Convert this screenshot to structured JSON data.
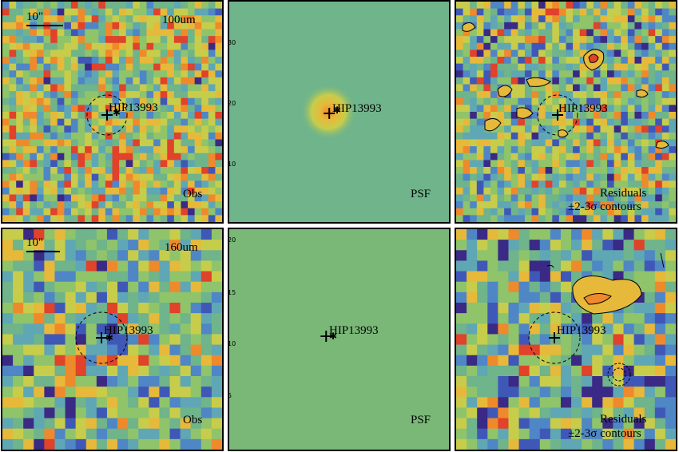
{
  "panels": [
    {
      "id": "obs100",
      "band_label": "100um",
      "corner_label": "Obs",
      "star": "HIP13993",
      "scale": "10\""
    },
    {
      "id": "psf100",
      "corner_label": "PSF",
      "star": "HIP13993",
      "axis_ticks": [
        "30",
        "20",
        "10"
      ]
    },
    {
      "id": "res100",
      "corner_label_1": "Residuals",
      "corner_label_2": "±2-3σ contours",
      "star": "HIP13993"
    },
    {
      "id": "obs160",
      "band_label": "160um",
      "corner_label": "Obs",
      "star": "HIP13993",
      "scale": "10\""
    },
    {
      "id": "psf160",
      "corner_label": "PSF",
      "star": "HIP13993",
      "axis_ticks": [
        "20",
        "15",
        "10",
        "5"
      ]
    },
    {
      "id": "res160",
      "corner_label_1": "Residuals",
      "corner_label_2": "±2-3σ contours",
      "star": "HIP13993"
    }
  ],
  "colors": {
    "palette": [
      "#3a2a86",
      "#3f58b8",
      "#4f86c6",
      "#5fa7b4",
      "#6fb48a",
      "#8fc46a",
      "#c7cd4a",
      "#e6b93a",
      "#ee8a2c",
      "#e0422a"
    ],
    "psf_bg": "#6fb48a",
    "psf160_bg": "#79b877"
  }
}
